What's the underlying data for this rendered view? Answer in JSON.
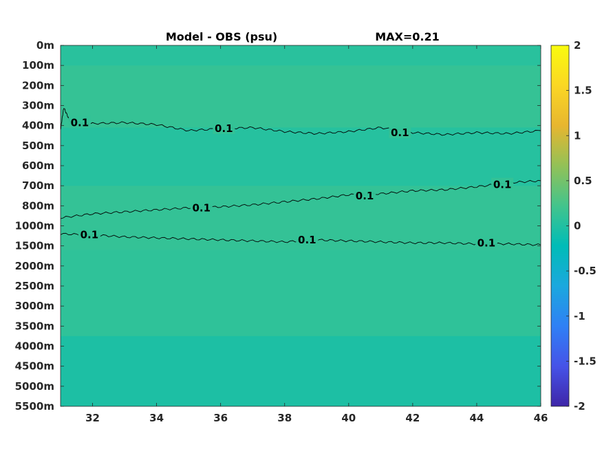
{
  "chart_data": {
    "type": "heatmap",
    "title": "Model - OBS (psu)",
    "max_label": "MAX=0.21",
    "xlabel": "",
    "ylabel": "",
    "x_ticks": [
      32,
      34,
      36,
      38,
      40,
      42,
      44,
      46
    ],
    "xlim": [
      31,
      46
    ],
    "y_ticks": [
      "0m",
      "100m",
      "200m",
      "300m",
      "400m",
      "500m",
      "600m",
      "700m",
      "800m",
      "1000m",
      "1500m",
      "2000m",
      "2500m",
      "3000m",
      "3500m",
      "4000m",
      "4500m",
      "5000m",
      "5500m"
    ],
    "colorbar": {
      "ticks": [
        "2",
        "1.5",
        "1",
        "0.5",
        "0",
        "-0.5",
        "-1",
        "-1.5",
        "-2"
      ],
      "range": [
        -2,
        2
      ],
      "colormap": "parula",
      "colors": [
        "#3e26a8",
        "#4653e8",
        "#2f80f5",
        "#1ba8de",
        "#00bcb7",
        "#43c48c",
        "#93c157",
        "#e7b62f",
        "#fbd724",
        "#f9fb0e"
      ]
    },
    "contours": [
      {
        "label": "0.1",
        "level": 0.1,
        "y_level": 3.95,
        "x_start": 31,
        "x_end": 46,
        "points": [
          [
            31,
            4.2
          ],
          [
            31.1,
            3.1
          ],
          [
            31.3,
            3.8
          ],
          [
            32,
            3.9
          ],
          [
            33,
            3.85
          ],
          [
            34,
            3.95
          ],
          [
            35,
            4.25
          ],
          [
            36,
            4.15
          ],
          [
            37,
            4.1
          ],
          [
            38,
            4.3
          ],
          [
            39,
            4.4
          ],
          [
            40,
            4.3
          ],
          [
            41,
            4.1
          ],
          [
            42,
            4.35
          ],
          [
            43,
            4.45
          ],
          [
            44,
            4.35
          ],
          [
            45,
            4.4
          ],
          [
            46,
            4.25
          ]
        ],
        "label_positions": [
          [
            31.6,
            3.85
          ],
          [
            36.1,
            4.15
          ],
          [
            41.6,
            4.35
          ]
        ]
      },
      {
        "label": "0.1",
        "level": 0.1,
        "y_level": 8.3,
        "x_start": 31,
        "x_end": 46,
        "points": [
          [
            31,
            8.6
          ],
          [
            32,
            8.4
          ],
          [
            33,
            8.3
          ],
          [
            34,
            8.2
          ],
          [
            35,
            8.1
          ],
          [
            36,
            8.05
          ],
          [
            37,
            7.95
          ],
          [
            38,
            7.8
          ],
          [
            39,
            7.65
          ],
          [
            40,
            7.45
          ],
          [
            41,
            7.4
          ],
          [
            42,
            7.25
          ],
          [
            43,
            7.2
          ],
          [
            44,
            7.05
          ],
          [
            45,
            6.85
          ],
          [
            46,
            6.75
          ]
        ],
        "label_positions": [
          [
            35.4,
            8.1
          ],
          [
            40.5,
            7.5
          ],
          [
            44.8,
            6.95
          ]
        ]
      },
      {
        "label": "0.1",
        "level": 0.1,
        "y_level": 9.6,
        "x_start": 31,
        "x_end": 46,
        "points": [
          [
            31,
            9.4
          ],
          [
            32,
            9.45
          ],
          [
            33,
            9.55
          ],
          [
            34,
            9.6
          ],
          [
            35,
            9.65
          ],
          [
            36,
            9.7
          ],
          [
            37,
            9.75
          ],
          [
            38,
            9.8
          ],
          [
            39,
            9.7
          ],
          [
            40,
            9.75
          ],
          [
            41,
            9.8
          ],
          [
            42,
            9.85
          ],
          [
            43,
            9.85
          ],
          [
            44,
            9.9
          ],
          [
            45,
            9.9
          ],
          [
            46,
            9.95
          ]
        ],
        "label_positions": [
          [
            31.9,
            9.45
          ],
          [
            38.7,
            9.7
          ],
          [
            44.3,
            9.85
          ]
        ]
      }
    ],
    "fields": {
      "background_value": -0.02,
      "bands": [
        {
          "value": 0.05,
          "y_top": 0,
          "y_bottom": 1.0
        },
        {
          "value": 0.13,
          "y_top": 1.0,
          "y_bottom": 4.1
        },
        {
          "value": 0.03,
          "y_top": 4.1,
          "y_bottom": 7.0
        },
        {
          "value": 0.12,
          "y_top": 7.0,
          "y_bottom": 10.2
        },
        {
          "value": 0.09,
          "y_top": 10.2,
          "y_bottom": 14.5
        },
        {
          "value": -0.03,
          "y_top": 14.5,
          "y_bottom": 18
        }
      ]
    }
  }
}
